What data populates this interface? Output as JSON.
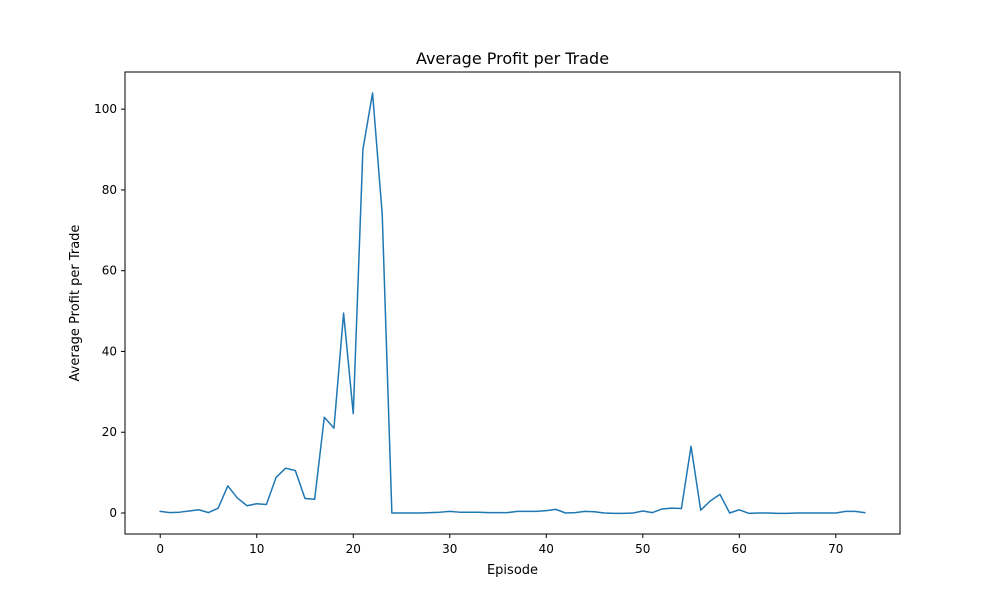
{
  "chart_data": {
    "type": "line",
    "title": "Average Profit per Trade",
    "xlabel": "Episode",
    "ylabel": "Average Profit per Trade",
    "xlim": [
      -3.65,
      76.65
    ],
    "ylim": [
      -5.2,
      109.2
    ],
    "xticks": [
      0,
      10,
      20,
      30,
      40,
      50,
      60,
      70
    ],
    "yticks": [
      0,
      20,
      40,
      60,
      80,
      100
    ],
    "grid": false,
    "legend": "none",
    "series": [
      {
        "color": "#1f77b4",
        "x": [
          0,
          1,
          2,
          3,
          4,
          5,
          6,
          7,
          8,
          9,
          10,
          11,
          12,
          13,
          14,
          15,
          16,
          17,
          18,
          19,
          20,
          21,
          22,
          23,
          24,
          25,
          26,
          27,
          28,
          29,
          30,
          31,
          32,
          33,
          34,
          35,
          36,
          37,
          38,
          39,
          40,
          41,
          42,
          43,
          44,
          45,
          46,
          47,
          48,
          49,
          50,
          51,
          52,
          53,
          54,
          55,
          56,
          57,
          58,
          59,
          60,
          61,
          62,
          63,
          64,
          65,
          66,
          67,
          68,
          69,
          70,
          71,
          72,
          73
        ],
        "y": [
          0.4,
          0.1,
          0.2,
          0.5,
          0.8,
          0.1,
          1.2,
          6.7,
          3.7,
          1.8,
          2.3,
          2.1,
          8.8,
          11.1,
          10.5,
          3.6,
          3.4,
          23.7,
          21.0,
          49.5,
          24.6,
          90.0,
          104.0,
          74.0,
          0.0,
          0.0,
          0.0,
          0.0,
          0.1,
          0.2,
          0.4,
          0.2,
          0.2,
          0.2,
          0.1,
          0.1,
          0.1,
          0.4,
          0.4,
          0.4,
          0.6,
          0.9,
          0.0,
          0.1,
          0.4,
          0.3,
          0.0,
          -0.1,
          -0.1,
          0.0,
          0.5,
          0.1,
          1.0,
          1.2,
          1.1,
          16.5,
          0.7,
          3.0,
          4.6,
          0.0,
          0.8,
          -0.1,
          0.0,
          0.0,
          -0.1,
          -0.1,
          0.0,
          0.0,
          0.0,
          0.0,
          0.0,
          0.4,
          0.4,
          0.1
        ]
      }
    ]
  }
}
